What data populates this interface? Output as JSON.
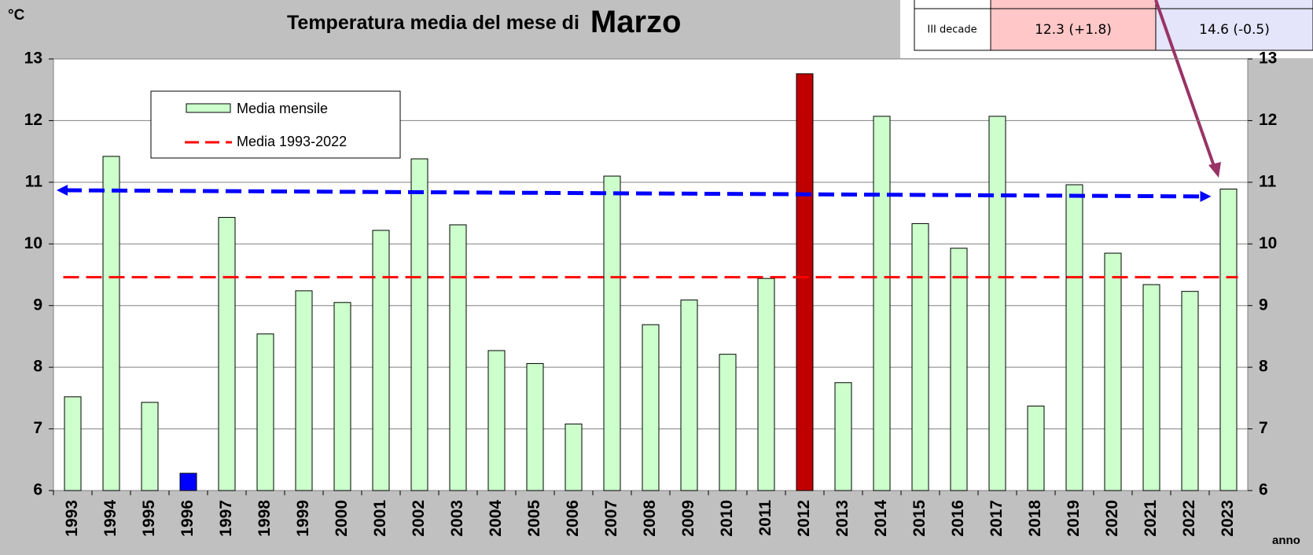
{
  "chart_data": {
    "type": "bar",
    "title": "Temperatura media del mese di",
    "title_month": "Marzo",
    "y_label": "°C",
    "x_label": "anno",
    "categories": [
      "1993",
      "1994",
      "1995",
      "1996",
      "1997",
      "1998",
      "1999",
      "2000",
      "2001",
      "2002",
      "2003",
      "2004",
      "2005",
      "2006",
      "2007",
      "2008",
      "2009",
      "2010",
      "2011",
      "2012",
      "2013",
      "2014",
      "2015",
      "2016",
      "2017",
      "2018",
      "2019",
      "2020",
      "2021",
      "2022",
      "2023"
    ],
    "series": [
      {
        "name": "Media mensile",
        "color": "#ccffcc",
        "colors": [
          "#ccffcc",
          "#ccffcc",
          "#ccffcc",
          "#0000ff",
          "#ccffcc",
          "#ccffcc",
          "#ccffcc",
          "#ccffcc",
          "#ccffcc",
          "#ccffcc",
          "#ccffcc",
          "#ccffcc",
          "#ccffcc",
          "#ccffcc",
          "#ccffcc",
          "#ccffcc",
          "#ccffcc",
          "#ccffcc",
          "#ccffcc",
          "#c00000",
          "#ccffcc",
          "#ccffcc",
          "#ccffcc",
          "#ccffcc",
          "#ccffcc",
          "#ccffcc",
          "#ccffcc",
          "#ccffcc",
          "#ccffcc",
          "#ccffcc",
          "#ccffcc"
        ],
        "values": [
          7.52,
          11.42,
          7.43,
          6.28,
          10.43,
          8.54,
          9.24,
          9.05,
          10.22,
          11.38,
          10.31,
          8.27,
          8.06,
          7.08,
          11.1,
          8.69,
          9.09,
          8.21,
          9.44,
          12.76,
          7.75,
          12.07,
          10.33,
          9.93,
          12.07,
          7.37,
          10.96,
          9.85,
          9.34,
          9.23,
          10.89
        ]
      }
    ],
    "mean_line": {
      "name": "Media 1993-2022",
      "color": "#ff0000",
      "value": 9.46
    },
    "trend": {
      "color": "#0000ff",
      "start": 10.87,
      "end": 10.77
    },
    "ylim": [
      6,
      13
    ],
    "yticks": [
      6,
      7,
      8,
      9,
      10,
      11,
      12,
      13
    ],
    "grid": true
  },
  "table": {
    "rows": [
      [
        "III decade",
        "12.3 (+1.8)",
        "14.6 (-0.5)"
      ]
    ]
  }
}
